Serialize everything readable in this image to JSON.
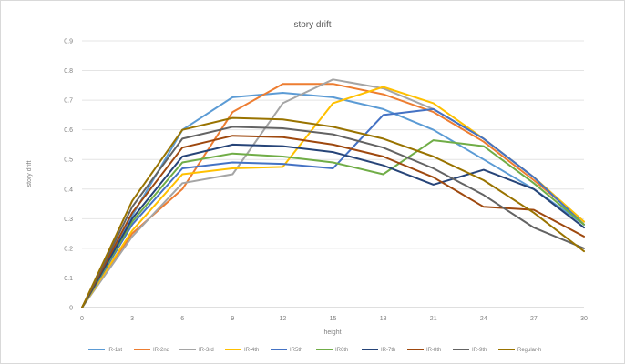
{
  "chart_data": {
    "type": "line",
    "title": "story drift",
    "xlabel": "height",
    "ylabel": "story drift",
    "x": [
      0,
      3,
      6,
      9,
      12,
      15,
      18,
      21,
      24,
      27,
      30
    ],
    "x_tick_labels": [
      "0",
      "3",
      "6",
      "9",
      "12",
      "15",
      "18",
      "21",
      "24",
      "27",
      "30"
    ],
    "ylim": [
      0,
      0.9
    ],
    "y_ticks": [
      0,
      0.1,
      0.2,
      0.3,
      0.4,
      0.5,
      0.6,
      0.7,
      0.8,
      0.9
    ],
    "y_tick_labels": [
      "0",
      "0.1",
      "0.2",
      "0.3",
      "0.4",
      "0.5",
      "0.6",
      "0.7",
      "0.8",
      "0.9"
    ],
    "grid": true,
    "legend_position": "bottom",
    "series": [
      {
        "name": "IR-1st",
        "color": "#5b9bd5",
        "values": [
          0,
          0.31,
          0.6,
          0.71,
          0.725,
          0.71,
          0.67,
          0.6,
          0.5,
          0.4,
          0.28
        ]
      },
      {
        "name": "IR-2nd",
        "color": "#ed7d31",
        "values": [
          0,
          0.25,
          0.4,
          0.66,
          0.755,
          0.755,
          0.72,
          0.66,
          0.56,
          0.43,
          0.29
        ]
      },
      {
        "name": "IR-3rd",
        "color": "#a5a5a5",
        "values": [
          0,
          0.24,
          0.42,
          0.45,
          0.69,
          0.77,
          0.74,
          0.67,
          0.57,
          0.44,
          0.29
        ]
      },
      {
        "name": "IR-4th",
        "color": "#ffc000",
        "values": [
          0,
          0.26,
          0.45,
          0.47,
          0.475,
          0.69,
          0.745,
          0.69,
          0.57,
          0.44,
          0.29
        ]
      },
      {
        "name": "IR5th",
        "color": "#4472c4",
        "values": [
          0,
          0.28,
          0.47,
          0.49,
          0.485,
          0.47,
          0.65,
          0.67,
          0.57,
          0.44,
          0.28
        ]
      },
      {
        "name": "IR6th",
        "color": "#70ad47",
        "values": [
          0,
          0.29,
          0.49,
          0.52,
          0.51,
          0.49,
          0.45,
          0.565,
          0.545,
          0.42,
          0.28
        ]
      },
      {
        "name": "IR-7th",
        "color": "#264478",
        "values": [
          0,
          0.3,
          0.51,
          0.55,
          0.545,
          0.525,
          0.48,
          0.415,
          0.465,
          0.4,
          0.27
        ]
      },
      {
        "name": "IR-8th",
        "color": "#9e480e",
        "values": [
          0,
          0.32,
          0.54,
          0.58,
          0.575,
          0.55,
          0.51,
          0.44,
          0.34,
          0.33,
          0.24
        ]
      },
      {
        "name": "IR-9th",
        "color": "#636363",
        "values": [
          0,
          0.34,
          0.57,
          0.61,
          0.605,
          0.585,
          0.54,
          0.47,
          0.38,
          0.27,
          0.2
        ]
      },
      {
        "name": "Regular-h",
        "color": "#997300",
        "values": [
          0,
          0.36,
          0.6,
          0.64,
          0.635,
          0.61,
          0.57,
          0.51,
          0.43,
          0.32,
          0.19
        ]
      }
    ]
  }
}
